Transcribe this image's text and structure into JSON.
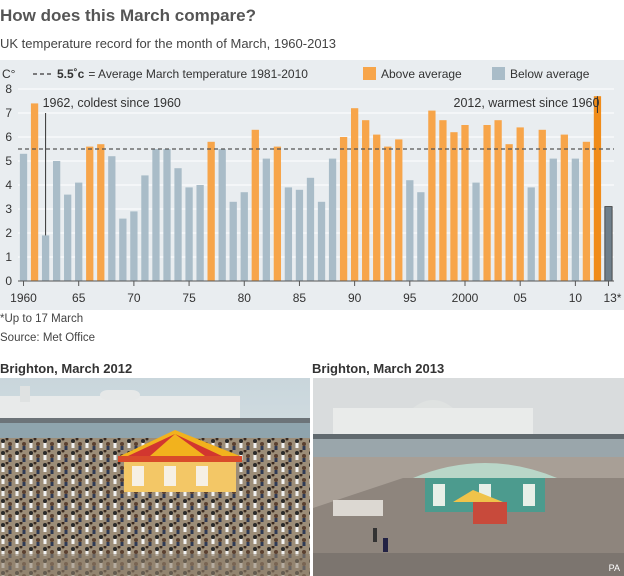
{
  "header": {
    "title": "How does this March compare?",
    "subtitle": "UK temperature record for the month of March, 1960-2013"
  },
  "chart_data": {
    "type": "bar",
    "unit_label": "C°",
    "ylim": [
      0,
      8
    ],
    "y_ticks": [
      0,
      1,
      2,
      3,
      4,
      5,
      6,
      7,
      8
    ],
    "average": {
      "value": 5.5,
      "value_label": "5.5˚c",
      "label": "= Average March temperature 1981-2010"
    },
    "legend": [
      {
        "label": "Above average",
        "color": "#f7a54a"
      },
      {
        "label": "Below average",
        "color": "#a9bcc8"
      }
    ],
    "colors": {
      "above": "#f7a54a",
      "below": "#a9bcc8",
      "highlight_above": "#f08c1a",
      "highlight_below": "#6f7f8b"
    },
    "x_tick_labels": [
      {
        "year": 1960,
        "label": "1960"
      },
      {
        "year": 1965,
        "label": "65"
      },
      {
        "year": 1970,
        "label": "70"
      },
      {
        "year": 1975,
        "label": "75"
      },
      {
        "year": 1980,
        "label": "80"
      },
      {
        "year": 1985,
        "label": "85"
      },
      {
        "year": 1990,
        "label": "90"
      },
      {
        "year": 1995,
        "label": "95"
      },
      {
        "year": 2000,
        "label": "2000"
      },
      {
        "year": 2005,
        "label": "05"
      },
      {
        "year": 2010,
        "label": "10"
      },
      {
        "year": 2013,
        "label": "13*"
      }
    ],
    "years": [
      1960,
      1961,
      1962,
      1963,
      1964,
      1965,
      1966,
      1967,
      1968,
      1969,
      1970,
      1971,
      1972,
      1973,
      1974,
      1975,
      1976,
      1977,
      1978,
      1979,
      1980,
      1981,
      1982,
      1983,
      1984,
      1985,
      1986,
      1987,
      1988,
      1989,
      1990,
      1991,
      1992,
      1993,
      1994,
      1995,
      1996,
      1997,
      1998,
      1999,
      2000,
      2001,
      2002,
      2003,
      2004,
      2005,
      2006,
      2007,
      2008,
      2009,
      2010,
      2011,
      2012,
      2013
    ],
    "values": [
      5.3,
      7.4,
      1.9,
      5.0,
      3.6,
      4.1,
      5.6,
      5.7,
      5.2,
      2.6,
      2.9,
      4.4,
      5.5,
      5.5,
      4.7,
      3.9,
      4.0,
      5.8,
      5.5,
      3.3,
      3.7,
      6.3,
      5.1,
      5.6,
      3.9,
      3.8,
      4.3,
      3.3,
      5.1,
      6.0,
      7.2,
      6.7,
      6.1,
      5.6,
      5.9,
      4.2,
      3.7,
      7.1,
      6.7,
      6.2,
      6.5,
      4.1,
      6.5,
      6.7,
      5.7,
      6.4,
      3.9,
      6.3,
      5.1,
      6.1,
      5.1,
      5.8,
      7.7,
      3.1
    ],
    "annotations": [
      {
        "year": 1962,
        "text": "1962, coldest since 1960"
      },
      {
        "year": 2012,
        "text": "2012, warmest since 1960"
      }
    ]
  },
  "notes": {
    "footnote": "*Up to 17 March",
    "source": "Source: Met Office"
  },
  "photos": [
    {
      "caption": "Brighton, March 2012"
    },
    {
      "caption": "Brighton, March 2013",
      "credit": "PA"
    }
  ]
}
